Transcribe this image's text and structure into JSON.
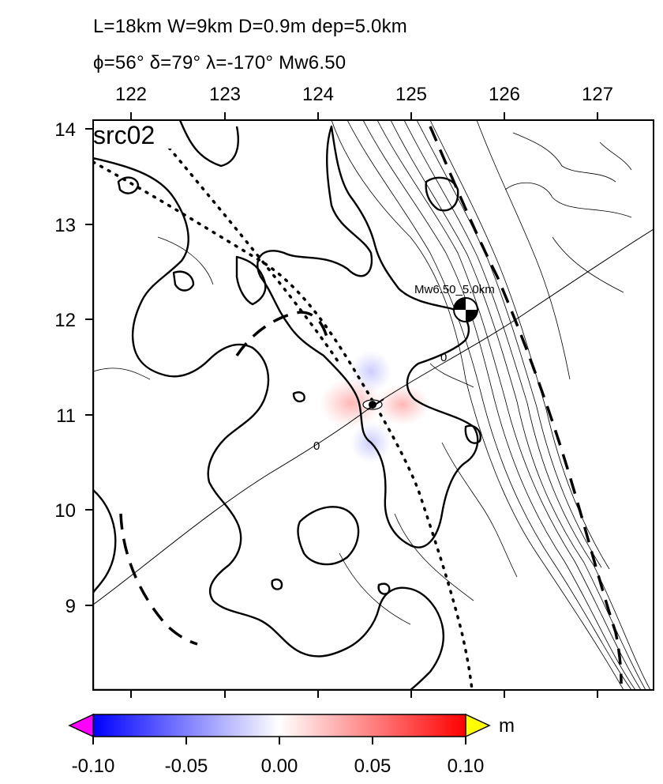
{
  "header": {
    "line1": "L=18km W=9km D=0.9m dep=5.0km",
    "line2": "ϕ=56° δ=79° λ=-170° Mw6.50"
  },
  "map": {
    "panel_label": "src02",
    "x_ticks": [
      "122",
      "123",
      "124",
      "125",
      "126",
      "127"
    ],
    "y_ticks": [
      "14",
      "13",
      "12",
      "11",
      "10",
      "9"
    ],
    "lon_range": [
      121.6,
      127.6
    ],
    "lat_range": [
      8.1,
      14.2
    ],
    "epicenter_label": "Mw6.50_5.0km",
    "epicenter": {
      "lon": 125.6,
      "lat": 12.1
    },
    "source": {
      "lon": 124.6,
      "lat": 11.1
    },
    "contour_labels": [
      "0",
      "0"
    ]
  },
  "colorbar": {
    "labels": [
      "-0.10",
      "-0.05",
      "0.00",
      "0.05",
      "0.10"
    ],
    "unit": "m",
    "colors": {
      "low": "#0000ff",
      "mid": "#ffffff",
      "high": "#ff0000",
      "under": "#ff00ff",
      "over": "#ffff00"
    }
  }
}
